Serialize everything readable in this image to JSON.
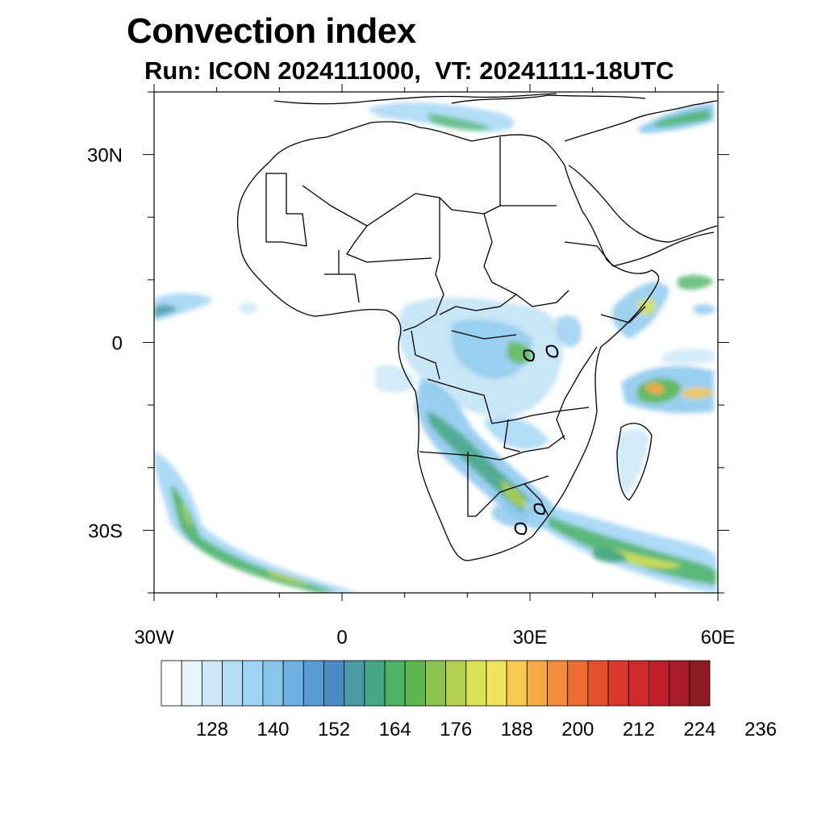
{
  "title": "Convection index",
  "subtitle": "Run: ICON 2024111000,  VT: 20241111-18UTC",
  "axes": {
    "lon_ticks": [
      {
        "value": -30,
        "label": "30W"
      },
      {
        "value": 0,
        "label": "0"
      },
      {
        "value": 30,
        "label": "30E"
      },
      {
        "value": 60,
        "label": "60E"
      }
    ],
    "lat_ticks": [
      {
        "value": 30,
        "label": "30N"
      },
      {
        "value": 0,
        "label": "0"
      },
      {
        "value": -30,
        "label": "30S"
      }
    ],
    "lon_range": [
      -30,
      60
    ],
    "lat_range": [
      -40,
      40
    ]
  },
  "colorbar": {
    "colors": [
      "#ffffff",
      "#e6f4fc",
      "#cde8f6",
      "#b6ddf3",
      "#9fd4f4",
      "#88c6ec",
      "#6eb0e2",
      "#579bd4",
      "#4b8cc4",
      "#4a9aa6",
      "#46a784",
      "#4cb366",
      "#5cb84e",
      "#8cc34f",
      "#b3d14e",
      "#dbe354",
      "#f2e45a",
      "#f6c94f",
      "#f6a944",
      "#f28c3a",
      "#ed6c30",
      "#e5502c",
      "#dc3b2b",
      "#d12a2a",
      "#c11f2b",
      "#aa1c28",
      "#8e1a22"
    ],
    "labels": [
      "128",
      "140",
      "152",
      "164",
      "176",
      "188",
      "200",
      "212",
      "224",
      "236"
    ]
  }
}
